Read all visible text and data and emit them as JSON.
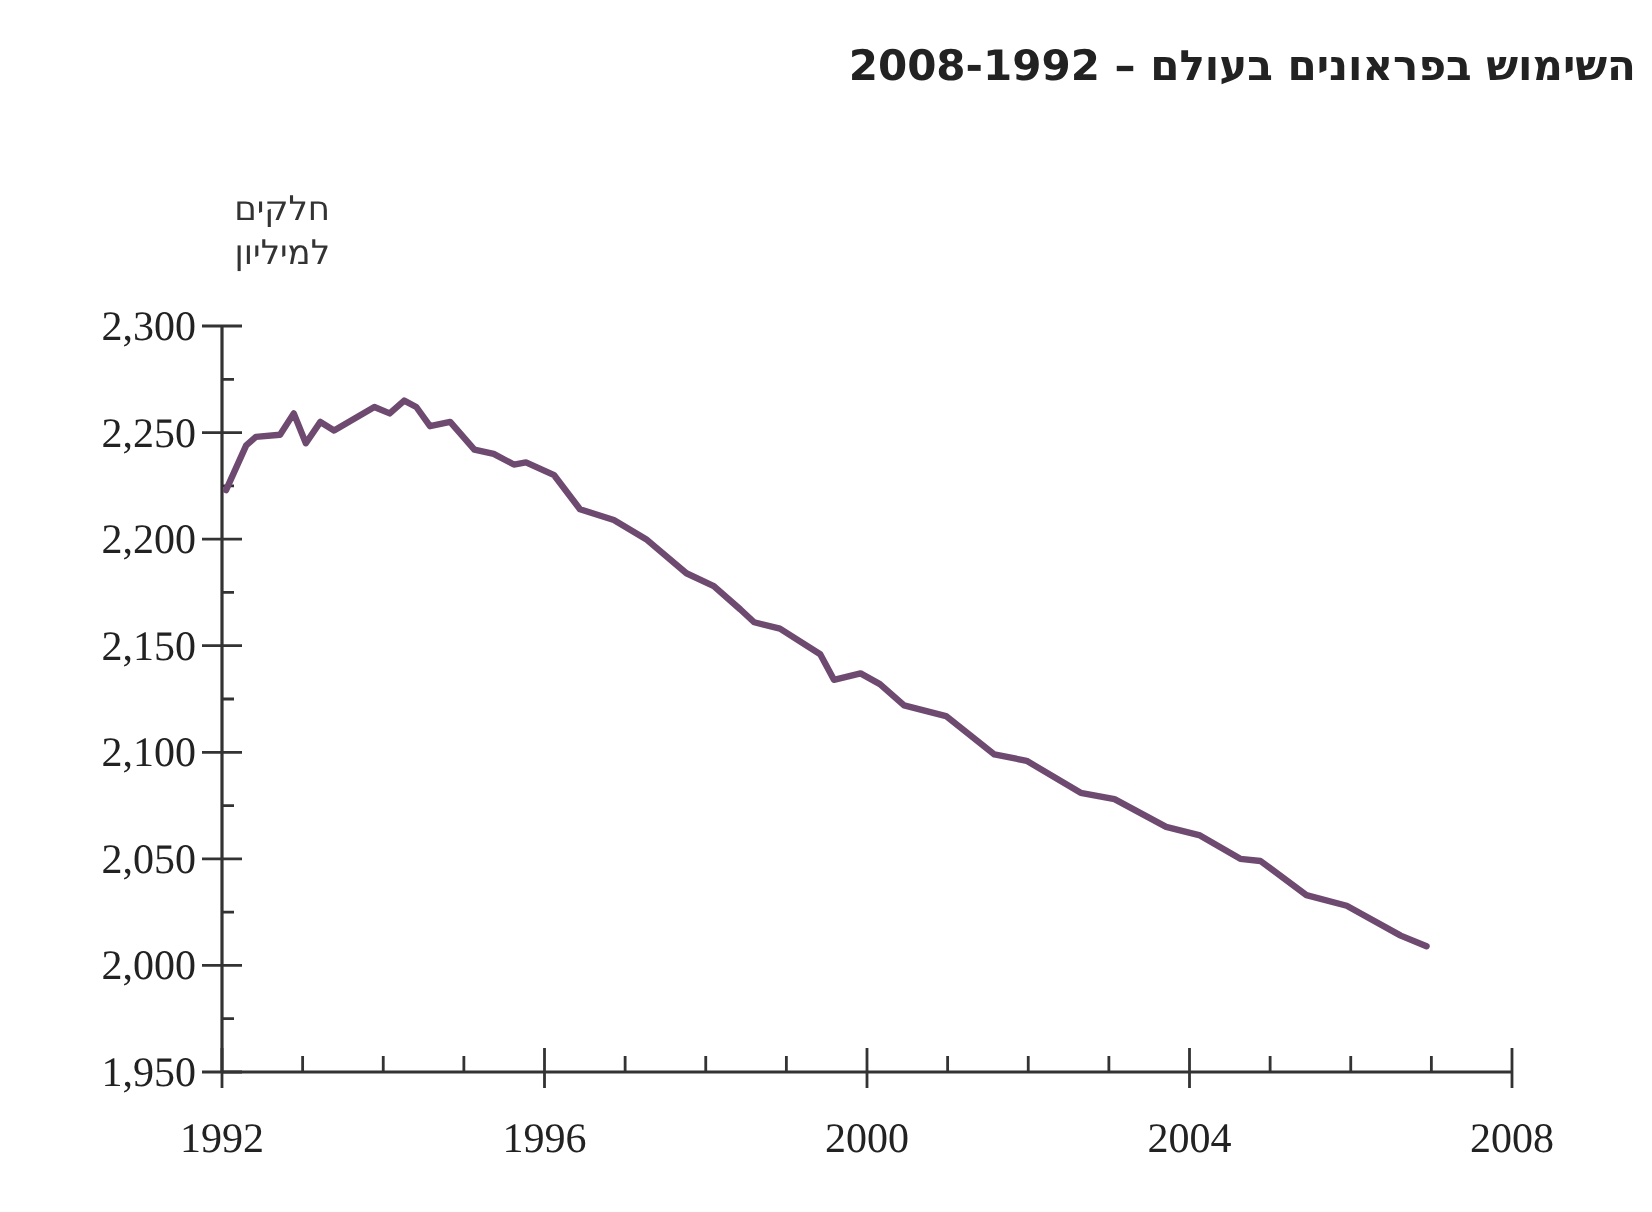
{
  "chart_data": {
    "type": "line",
    "title": "השימוש בפראונים בעולם – 2008-1992",
    "ylabel": "חלקים\nלמיליון",
    "x": [
      1992.05,
      1992.3,
      1992.42,
      1992.72,
      1992.89,
      1993.04,
      1993.22,
      1993.39,
      1993.89,
      1994.08,
      1994.26,
      1994.41,
      1994.58,
      1994.83,
      1995.13,
      1995.37,
      1995.62,
      1995.77,
      1996.12,
      1996.44,
      1996.86,
      1997.26,
      1997.76,
      1998.1,
      1998.43,
      1998.6,
      1998.92,
      1999.42,
      1999.59,
      1999.92,
      2000.16,
      2000.46,
      2000.98,
      2001.58,
      2001.98,
      2002.65,
      2003.07,
      2003.71,
      2004.13,
      2004.63,
      2004.88,
      2005.45,
      2005.95,
      2006.62,
      2006.94
    ],
    "series": [
      {
        "color": "#6e4a70",
        "values": [
          2223,
          2244,
          2248,
          2249,
          2259,
          2245,
          2255,
          2251,
          2262,
          2259,
          2265,
          2262,
          2253,
          2255,
          2242,
          2240,
          2235,
          2236,
          2230,
          2214,
          2209,
          2200,
          2184,
          2178,
          2167,
          2161,
          2158,
          2146,
          2134,
          2137,
          2132,
          2122,
          2117,
          2099,
          2096,
          2081,
          2078,
          2065,
          2061,
          2050,
          2049,
          2033,
          2028,
          2014,
          2009
        ]
      }
    ],
    "xlim": [
      1992,
      2008
    ],
    "xticks": [
      1992,
      {
        "value": 1993,
        "label": null
      },
      {
        "value": 1994,
        "label": null
      },
      {
        "value": 1995,
        "label": null
      },
      1996,
      {
        "value": 1997,
        "label": null
      },
      {
        "value": 1998,
        "label": null
      },
      {
        "value": 1999,
        "label": null
      },
      2000,
      {
        "value": 2001,
        "label": null
      },
      {
        "value": 2002,
        "label": null
      },
      {
        "value": 2003,
        "label": null
      },
      2004,
      {
        "value": 2005,
        "label": null
      },
      {
        "value": 2006,
        "label": null
      },
      {
        "value": 2007,
        "label": null
      },
      2008
    ],
    "ylim": [
      1950,
      2300
    ],
    "yticks": [
      {
        "value": 1950,
        "label": "1,950"
      },
      {
        "value": 1975,
        "label": null
      },
      {
        "value": 2000,
        "label": "2,000"
      },
      {
        "value": 2025,
        "label": null
      },
      {
        "value": 2050,
        "label": "2,050"
      },
      {
        "value": 2075,
        "label": null
      },
      {
        "value": 2100,
        "label": "2,100"
      },
      {
        "value": 2125,
        "label": null
      },
      {
        "value": 2150,
        "label": "2,150"
      },
      {
        "value": 2175,
        "label": null
      },
      {
        "value": 2200,
        "label": "2,200"
      },
      {
        "value": 2225,
        "label": null
      },
      {
        "value": 2250,
        "label": "2,250"
      },
      {
        "value": 2275,
        "label": null
      },
      {
        "value": 2300,
        "label": "2,300"
      }
    ],
    "line_style": "solid"
  }
}
